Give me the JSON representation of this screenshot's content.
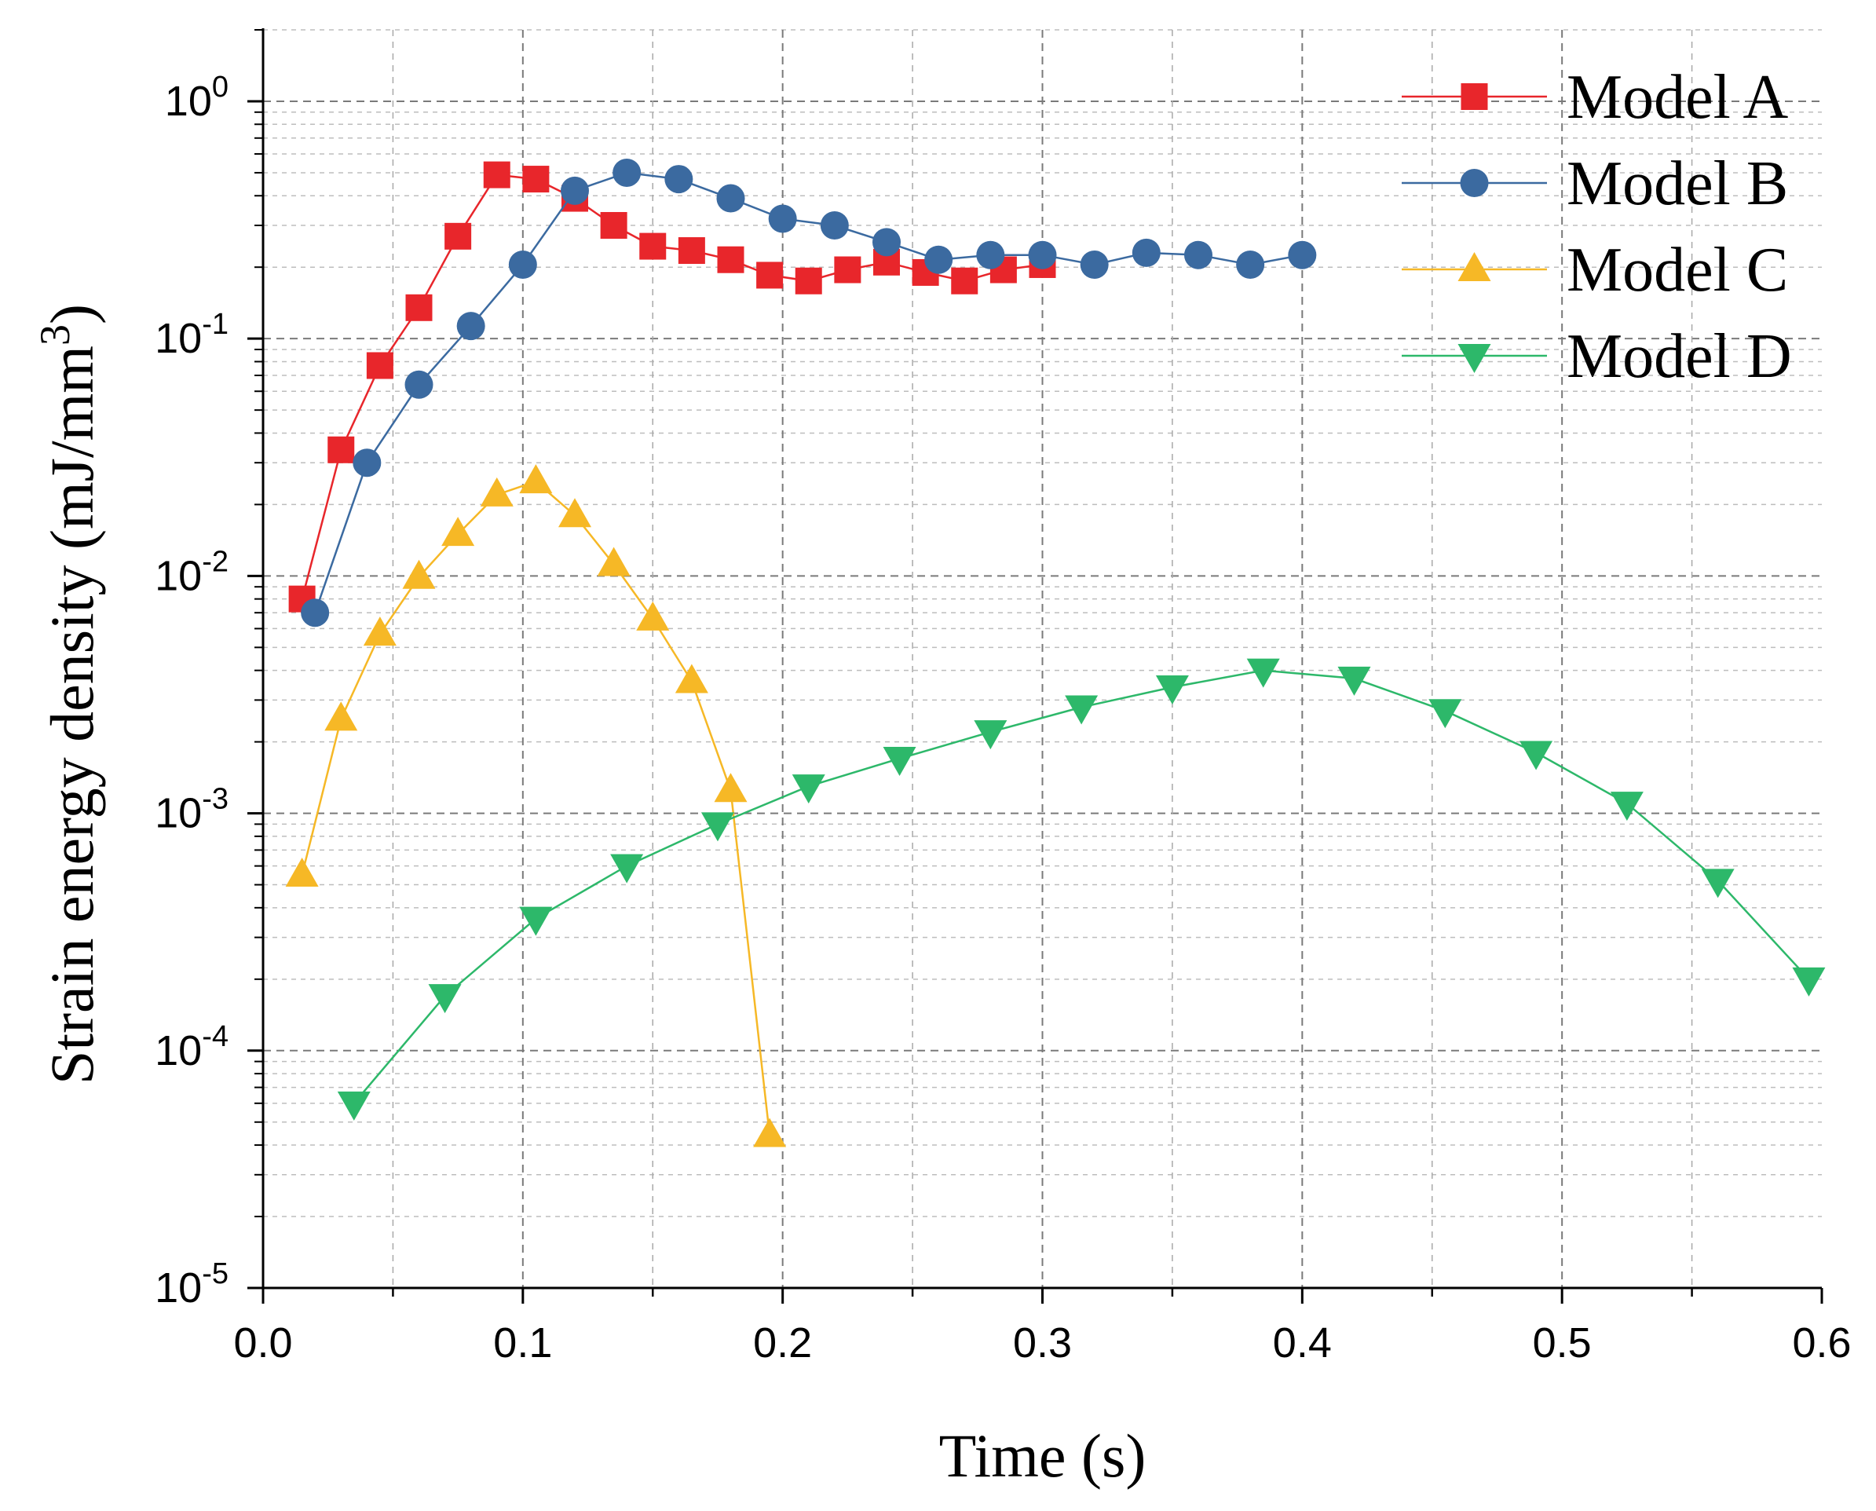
{
  "chart_data": {
    "type": "line",
    "title": "",
    "xlabel": "Time (s)",
    "ylabel": "Strain energy density (mJ/mm",
    "ylabel_sup": "3",
    "ylabel_close": ")",
    "xscale": "linear",
    "yscale": "log",
    "xlim": [
      0.0,
      0.6
    ],
    "ylim": [
      1e-05,
      2.0
    ],
    "grid": true,
    "legend_position": "top-right",
    "x_ticks": [
      {
        "value": 0.0,
        "label": "0.0"
      },
      {
        "value": 0.1,
        "label": "0.1"
      },
      {
        "value": 0.2,
        "label": "0.2"
      },
      {
        "value": 0.3,
        "label": "0.3"
      },
      {
        "value": 0.4,
        "label": "0.4"
      },
      {
        "value": 0.5,
        "label": "0.5"
      },
      {
        "value": 0.6,
        "label": "0.6"
      }
    ],
    "y_ticks": [
      {
        "exp": -5,
        "base": "10",
        "sup": "-5"
      },
      {
        "exp": -4,
        "base": "10",
        "sup": "-4"
      },
      {
        "exp": -3,
        "base": "10",
        "sup": "-3"
      },
      {
        "exp": -2,
        "base": "10",
        "sup": "-2"
      },
      {
        "exp": -1,
        "base": "10",
        "sup": "-1"
      },
      {
        "exp": 0,
        "base": "10",
        "sup": "0"
      }
    ],
    "series": [
      {
        "name": "Model A",
        "color": "#e8262b",
        "marker": "square",
        "x": [
          0.015,
          0.03,
          0.045,
          0.06,
          0.075,
          0.09,
          0.105,
          0.12,
          0.135,
          0.15,
          0.165,
          0.18,
          0.195,
          0.21,
          0.225,
          0.24,
          0.255,
          0.27,
          0.285,
          0.3
        ],
        "y": [
          0.008,
          0.034,
          0.077,
          0.135,
          0.27,
          0.49,
          0.47,
          0.39,
          0.3,
          0.245,
          0.235,
          0.215,
          0.185,
          0.175,
          0.195,
          0.21,
          0.19,
          0.175,
          0.195,
          0.205
        ]
      },
      {
        "name": "Model B",
        "color": "#3b6aa0",
        "marker": "circle",
        "x": [
          0.02,
          0.04,
          0.06,
          0.08,
          0.1,
          0.12,
          0.14,
          0.16,
          0.18,
          0.2,
          0.22,
          0.24,
          0.26,
          0.28,
          0.3,
          0.32,
          0.34,
          0.36,
          0.38,
          0.4
        ],
        "y": [
          0.007,
          0.03,
          0.064,
          0.113,
          0.205,
          0.42,
          0.5,
          0.47,
          0.39,
          0.32,
          0.3,
          0.255,
          0.215,
          0.225,
          0.225,
          0.205,
          0.23,
          0.225,
          0.205,
          0.225
        ]
      },
      {
        "name": "Model C",
        "color": "#f6b826",
        "marker": "triangle-up",
        "x": [
          0.015,
          0.03,
          0.045,
          0.06,
          0.075,
          0.09,
          0.105,
          0.12,
          0.135,
          0.15,
          0.165,
          0.18,
          0.195
        ],
        "y": [
          0.00055,
          0.0025,
          0.0057,
          0.0099,
          0.015,
          0.022,
          0.025,
          0.018,
          0.0112,
          0.0066,
          0.0036,
          0.00125,
          4.4e-05
        ]
      },
      {
        "name": "Model D",
        "color": "#2db86a",
        "marker": "triangle-down",
        "x": [
          0.035,
          0.07,
          0.105,
          0.14,
          0.175,
          0.21,
          0.245,
          0.28,
          0.315,
          0.35,
          0.385,
          0.42,
          0.455,
          0.49,
          0.525,
          0.56,
          0.595
        ],
        "y": [
          6e-05,
          0.00017,
          0.00036,
          0.0006,
          0.0009,
          0.0013,
          0.0017,
          0.0022,
          0.0028,
          0.0034,
          0.004,
          0.0037,
          0.0027,
          0.0018,
          0.0011,
          0.00052,
          0.0002
        ]
      }
    ]
  }
}
